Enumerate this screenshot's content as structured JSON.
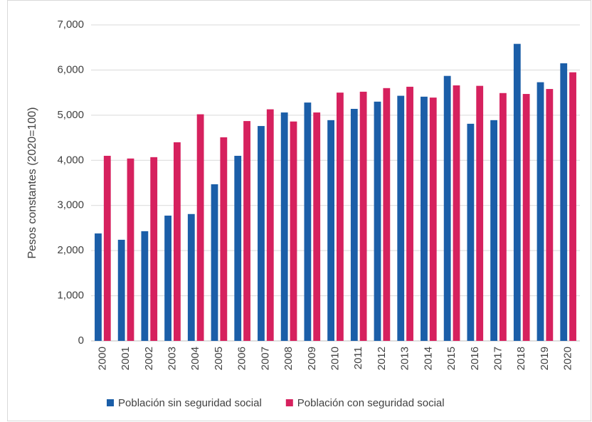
{
  "chart_data": {
    "type": "bar",
    "y_label": "Pesos constantes (2020=100)",
    "categories": [
      "2000",
      "2001",
      "2002",
      "2003",
      "2004",
      "2005",
      "2006",
      "2007",
      "2008",
      "2009",
      "2010",
      "2011",
      "2012",
      "2013",
      "2014",
      "2015",
      "2016",
      "2017",
      "2018",
      "2019",
      "2020"
    ],
    "series": [
      {
        "name": "Población sin seguridad social",
        "color": "#1b5ea8",
        "values": [
          2380,
          2240,
          2430,
          2775,
          2810,
          3470,
          4100,
          4760,
          5060,
          5280,
          4890,
          5140,
          5300,
          5430,
          5410,
          5870,
          4810,
          4890,
          6580,
          5730,
          6150
        ]
      },
      {
        "name": "Población con seguridad social",
        "color": "#d6215e",
        "values": [
          4100,
          4040,
          4070,
          4400,
          5020,
          4510,
          4870,
          5130,
          4860,
          5060,
          5500,
          5520,
          5600,
          5630,
          5390,
          5660,
          5650,
          5490,
          5470,
          5580,
          5950
        ]
      }
    ],
    "ylim": [
      0,
      7000
    ],
    "yticks": [
      0,
      {
        "value": 1000,
        "label": "1,000"
      },
      {
        "value": 2000,
        "label": "2,000"
      },
      {
        "value": 3000,
        "label": "3,000"
      },
      {
        "value": 4000,
        "label": "4,000"
      },
      {
        "value": 5000,
        "label": "5,000"
      },
      {
        "value": 6000,
        "label": "6,000"
      },
      {
        "value": 7000,
        "label": "7,000"
      }
    ],
    "grid": true,
    "legend": "bottom"
  }
}
